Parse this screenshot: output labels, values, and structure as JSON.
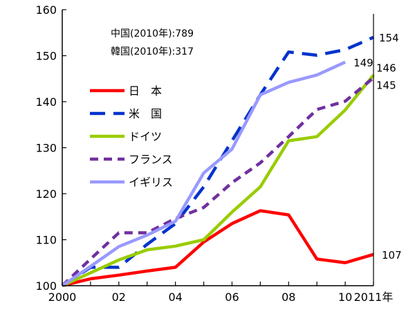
{
  "chart_data": {
    "type": "line",
    "x": [
      2000,
      2001,
      2002,
      2003,
      2004,
      2005,
      2006,
      2007,
      2008,
      2009,
      2010,
      2011
    ],
    "x_tick_labels": [
      {
        "x": 2000,
        "label": "2000"
      },
      {
        "x": 2002,
        "label": "02"
      },
      {
        "x": 2004,
        "label": "04"
      },
      {
        "x": 2006,
        "label": "06"
      },
      {
        "x": 2008,
        "label": "08"
      },
      {
        "x": 2010,
        "label": "10"
      },
      {
        "x": 2011,
        "label": "2011年"
      }
    ],
    "y_ticks": [
      100,
      110,
      120,
      130,
      140,
      150,
      160
    ],
    "ylim": [
      100,
      160
    ],
    "xlim": [
      2000,
      2011
    ],
    "notes": [
      "中国(2010年):789",
      "韓国(2010年):317"
    ],
    "series": [
      {
        "name": "日　本",
        "color": "#ff0000",
        "dash": "solid",
        "values": [
          100,
          101.5,
          102.3,
          103.2,
          104.0,
          109.5,
          113.5,
          116.3,
          115.4,
          105.8,
          105.0,
          106.8
        ],
        "end_label": "107"
      },
      {
        "name": "米　国",
        "color": "#0033cc",
        "dash": "long",
        "values": [
          100,
          104.0,
          104.0,
          109.0,
          113.5,
          121.5,
          131.5,
          141.5,
          150.8,
          150.1,
          151.3,
          154.0
        ],
        "end_label": "154"
      },
      {
        "name": "ドイツ",
        "color": "#99cc00",
        "dash": "solid",
        "values": [
          100,
          102.8,
          105.6,
          107.8,
          108.6,
          110.0,
          116.0,
          121.5,
          131.5,
          132.4,
          138.2,
          145.8
        ],
        "end_label": "146"
      },
      {
        "name": "フランス",
        "color": "#7030a0",
        "dash": "short",
        "values": [
          100,
          105.8,
          111.5,
          111.5,
          114.6,
          117.0,
          122.4,
          126.7,
          132.4,
          138.3,
          140.1,
          145.2
        ],
        "end_label": "145"
      },
      {
        "name": "イギリス",
        "color": "#9999ff",
        "dash": "solid",
        "values": [
          100,
          104.2,
          108.5,
          111.0,
          114.0,
          124.5,
          129.7,
          141.5,
          144.2,
          145.8,
          148.6,
          null
        ],
        "end_label": "149"
      }
    ]
  }
}
